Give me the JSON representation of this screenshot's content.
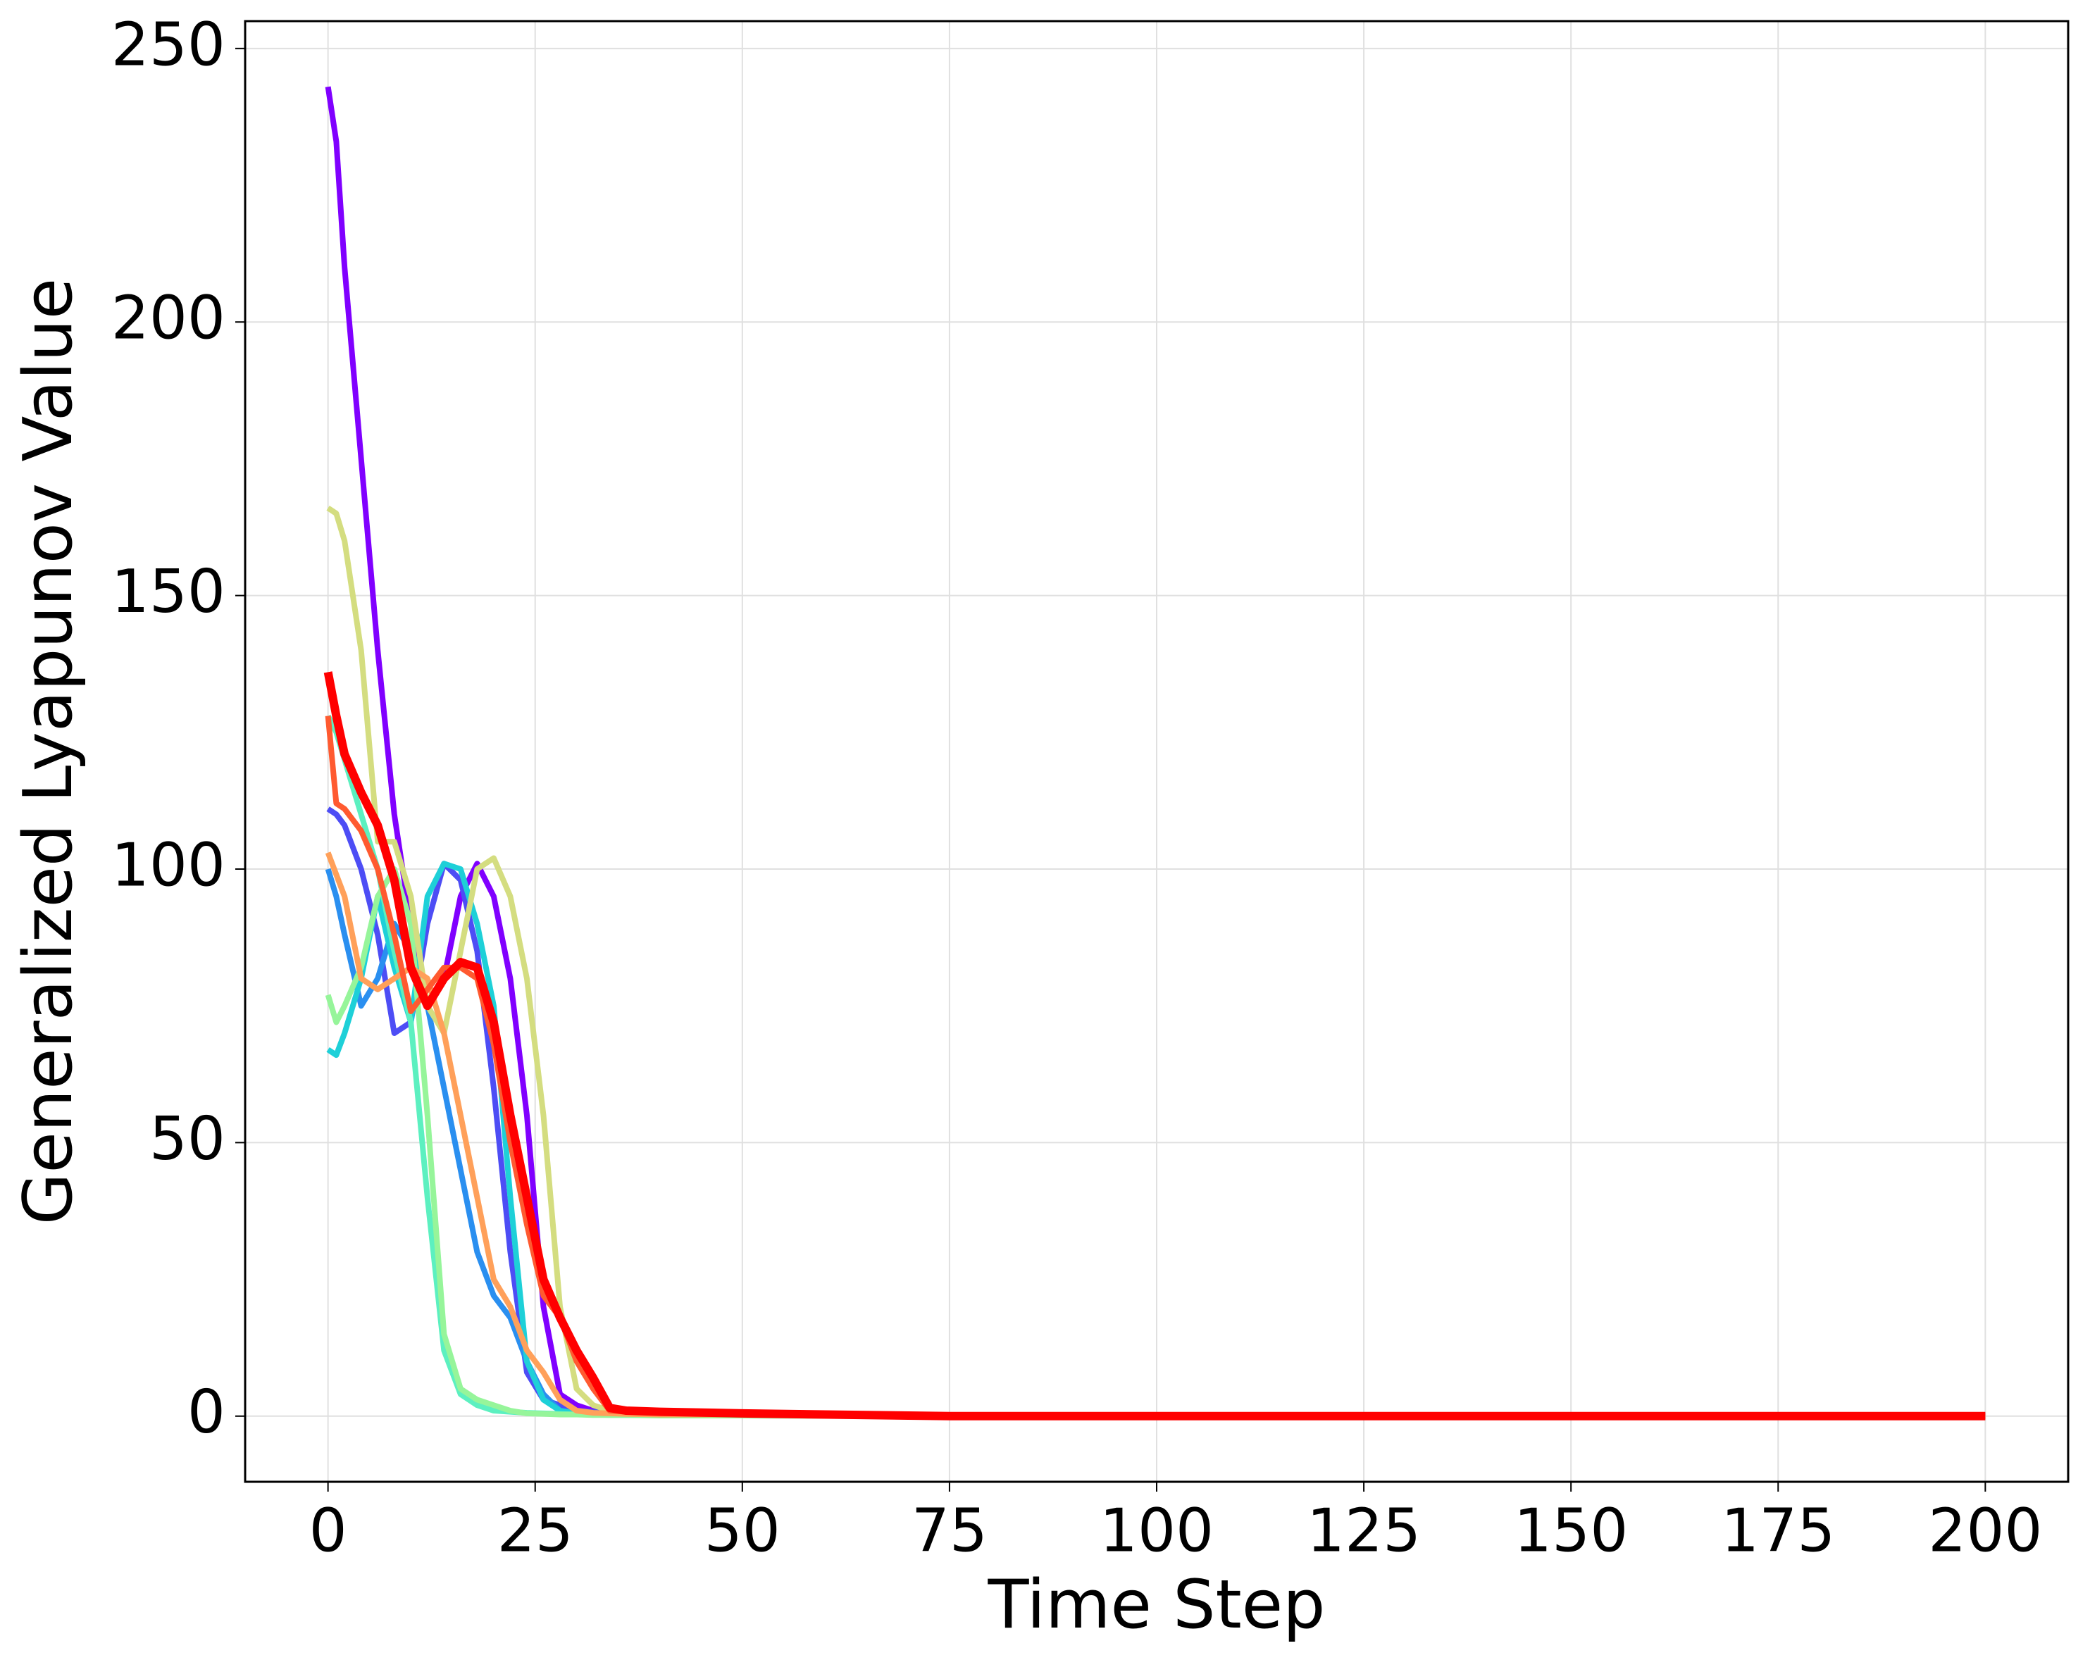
{
  "chart_data": {
    "type": "line",
    "xlabel": "Time Step",
    "ylabel": "Generalized Lyapunov Value",
    "x": [
      0,
      1,
      2,
      4,
      6,
      8,
      10,
      12,
      14,
      16,
      18,
      20,
      22,
      24,
      26,
      28,
      30,
      32,
      34,
      36,
      40,
      50,
      75,
      100,
      150,
      200
    ],
    "series": [
      {
        "color": "#8000ff",
        "values": [
          243,
          233,
          210,
          175,
          140,
          110,
          90,
          75,
          80,
          95,
          101,
          95,
          80,
          55,
          20,
          4,
          2,
          1,
          1,
          0.8,
          0.6,
          0.5,
          0,
          0,
          0,
          0
        ]
      },
      {
        "color": "#4d4df5",
        "values": [
          111,
          110,
          108,
          100,
          88,
          70,
          72,
          90,
          101,
          98,
          85,
          60,
          30,
          8,
          3,
          2,
          1,
          0.8,
          0.6,
          0.5,
          0.4,
          0.3,
          0,
          0,
          0,
          0
        ]
      },
      {
        "color": "#2a8ff0",
        "values": [
          100,
          95,
          88,
          75,
          80,
          90,
          85,
          75,
          60,
          45,
          30,
          22,
          18,
          10,
          4,
          1,
          0.5,
          0.4,
          0.3,
          0.3,
          0.2,
          0.2,
          0,
          0,
          0,
          0
        ]
      },
      {
        "color": "#1ed0d8",
        "values": [
          67,
          66,
          70,
          80,
          95,
          82,
          72,
          95,
          101,
          100,
          90,
          75,
          40,
          10,
          3,
          1,
          0.5,
          0.4,
          0.3,
          0.3,
          0.2,
          0.2,
          0,
          0,
          0,
          0
        ]
      },
      {
        "color": "#5cf0c0",
        "values": [
          128,
          125,
          120,
          110,
          100,
          85,
          72,
          40,
          12,
          4,
          2,
          1,
          0.8,
          0.6,
          0.5,
          0.4,
          0.3,
          0.3,
          0.2,
          0.2,
          0.2,
          0.1,
          0,
          0,
          0,
          0
        ]
      },
      {
        "color": "#96f59a",
        "values": [
          77,
          72,
          75,
          82,
          95,
          100,
          90,
          55,
          15,
          5,
          3,
          2,
          1,
          0.5,
          0.4,
          0.3,
          0.3,
          0.2,
          0.2,
          0.2,
          0.1,
          0.1,
          0,
          0,
          0,
          0
        ]
      },
      {
        "color": "#d4dd80",
        "values": [
          166,
          165,
          160,
          140,
          105,
          105,
          95,
          75,
          70,
          85,
          100,
          102,
          95,
          80,
          55,
          20,
          5,
          2,
          1,
          0.8,
          0.6,
          0.4,
          0,
          0,
          0,
          0
        ]
      },
      {
        "color": "#ffa05a",
        "values": [
          103,
          99,
          95,
          80,
          78,
          80,
          82,
          80,
          70,
          55,
          40,
          25,
          20,
          12,
          8,
          3,
          1,
          0.6,
          0.5,
          0.4,
          0.3,
          0.3,
          0,
          0,
          0,
          0
        ]
      },
      {
        "color": "#ff5a30",
        "values": [
          128,
          112,
          111,
          107,
          100,
          88,
          74,
          78,
          82,
          82,
          80,
          68,
          50,
          35,
          22,
          18,
          10,
          5,
          1,
          0.8,
          0.6,
          0.4,
          0,
          0,
          0,
          0
        ]
      },
      {
        "color": "#ff0000",
        "values": [
          136,
          128,
          121,
          114,
          108,
          98,
          82,
          75,
          80,
          83,
          82,
          72,
          55,
          40,
          25,
          18,
          12,
          7,
          1.5,
          1,
          0.8,
          0.5,
          0,
          0,
          0,
          0
        ]
      }
    ],
    "xlim": [
      -10,
      210
    ],
    "xticks": [
      0,
      25,
      50,
      75,
      100,
      125,
      150,
      175,
      200
    ],
    "ylim": [
      -12,
      255
    ],
    "yticks": [
      0,
      50,
      100,
      150,
      200,
      250
    ],
    "grid": true
  }
}
